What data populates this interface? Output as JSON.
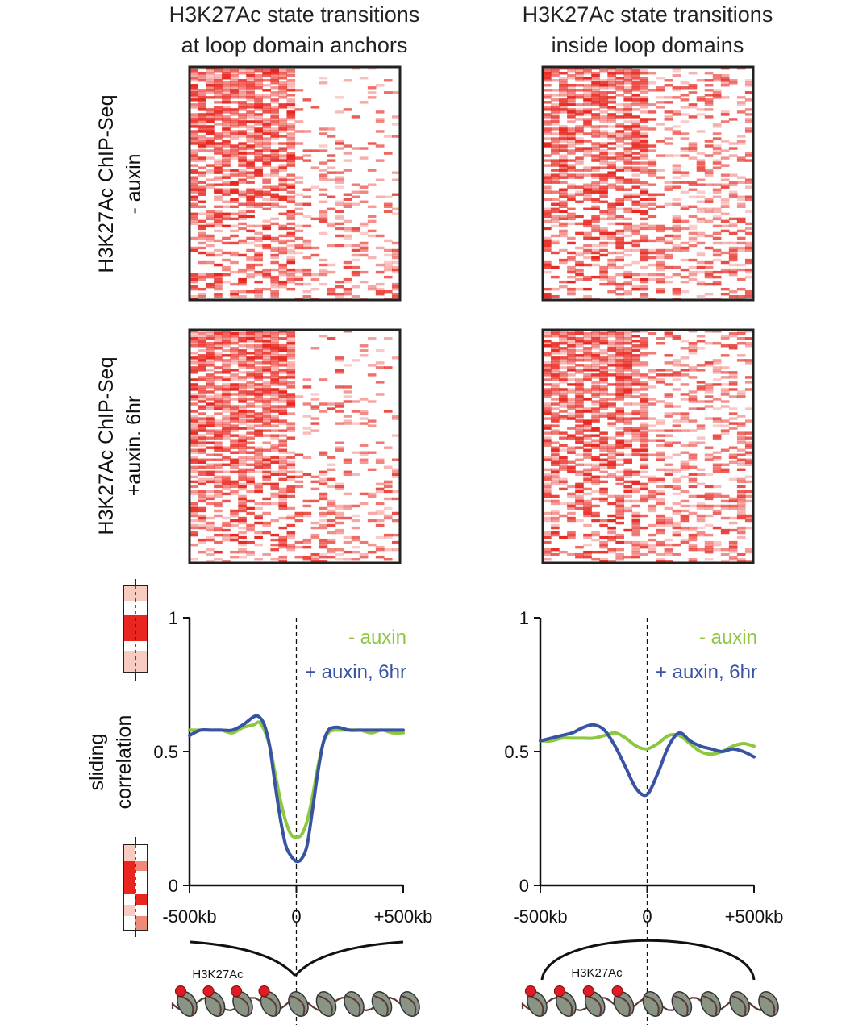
{
  "columns": [
    {
      "title_line1": "H3K27Ac state transitions",
      "title_line2": "at loop domain anchors"
    },
    {
      "title_line1": "H3K27Ac state transitions",
      "title_line2": "inside loop domains"
    }
  ],
  "rows": [
    {
      "label_line1": "H3K27Ac ChIP-Seq",
      "label_line2": "- auxin"
    },
    {
      "label_line1": "H3K27Ac ChIP-Seq",
      "label_line2": "+auxin. 6hr"
    }
  ],
  "colors": {
    "heat": "#e8261f",
    "minus_auxin": "#8dc63f",
    "plus_auxin": "#3953a4"
  },
  "ylabel_line1": "sliding",
  "ylabel_line2": "correlation",
  "diagram_label": "H3K27Ac",
  "chart_data": [
    {
      "type": "line",
      "title": "H3K27Ac state transitions at loop domain anchors",
      "xlabel": "",
      "ylabel": "sliding correlation",
      "x_ticks": [
        "-500kb",
        "0",
        "+500kb"
      ],
      "y_ticks": [
        "0",
        "0.5",
        "1"
      ],
      "xlim": [
        -500,
        500
      ],
      "ylim": [
        0,
        1
      ],
      "x": [
        -500,
        -450,
        -400,
        -350,
        -300,
        -250,
        -200,
        -175,
        -150,
        -125,
        -100,
        -75,
        -50,
        -25,
        0,
        25,
        50,
        75,
        100,
        125,
        150,
        175,
        200,
        250,
        300,
        350,
        400,
        450,
        500
      ],
      "series": [
        {
          "name": "- auxin",
          "color": "#8dc63f",
          "values": [
            0.58,
            0.58,
            0.58,
            0.58,
            0.57,
            0.59,
            0.6,
            0.61,
            0.58,
            0.52,
            0.42,
            0.32,
            0.24,
            0.19,
            0.18,
            0.19,
            0.24,
            0.33,
            0.44,
            0.53,
            0.57,
            0.58,
            0.58,
            0.58,
            0.58,
            0.57,
            0.58,
            0.57,
            0.57
          ]
        },
        {
          "name": "+ auxin, 6hr",
          "color": "#3953a4",
          "values": [
            0.56,
            0.58,
            0.58,
            0.58,
            0.58,
            0.6,
            0.63,
            0.63,
            0.6,
            0.52,
            0.38,
            0.25,
            0.15,
            0.11,
            0.09,
            0.1,
            0.15,
            0.28,
            0.42,
            0.53,
            0.58,
            0.59,
            0.59,
            0.58,
            0.58,
            0.58,
            0.58,
            0.58,
            0.58
          ]
        }
      ]
    },
    {
      "type": "line",
      "title": "H3K27Ac state transitions inside loop domains",
      "xlabel": "",
      "ylabel": "sliding correlation",
      "x_ticks": [
        "-500kb",
        "0",
        "+500kb"
      ],
      "y_ticks": [
        "0",
        "0.5",
        "1"
      ],
      "xlim": [
        -500,
        500
      ],
      "ylim": [
        0,
        1
      ],
      "x": [
        -500,
        -450,
        -400,
        -350,
        -300,
        -250,
        -200,
        -150,
        -100,
        -50,
        0,
        50,
        100,
        150,
        200,
        250,
        300,
        350,
        400,
        450,
        500
      ],
      "series": [
        {
          "name": "- auxin",
          "color": "#8dc63f",
          "values": [
            0.54,
            0.54,
            0.55,
            0.55,
            0.55,
            0.55,
            0.56,
            0.57,
            0.55,
            0.52,
            0.51,
            0.53,
            0.56,
            0.56,
            0.53,
            0.5,
            0.49,
            0.5,
            0.52,
            0.53,
            0.52
          ]
        },
        {
          "name": "+ auxin, 6hr",
          "color": "#3953a4",
          "values": [
            0.54,
            0.55,
            0.56,
            0.57,
            0.59,
            0.6,
            0.58,
            0.52,
            0.44,
            0.36,
            0.34,
            0.42,
            0.52,
            0.57,
            0.54,
            0.52,
            0.51,
            0.5,
            0.51,
            0.5,
            0.48
          ]
        }
      ]
    }
  ]
}
